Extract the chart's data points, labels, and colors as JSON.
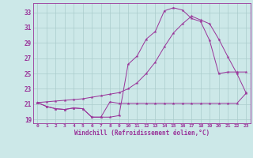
{
  "xlabel": "Windchill (Refroidissement éolien,°C)",
  "bg_color": "#cce8e8",
  "grid_color": "#aacccc",
  "line_color": "#993399",
  "xlim": [
    -0.5,
    23.5
  ],
  "ylim": [
    18.5,
    34.2
  ],
  "xticks": [
    0,
    1,
    2,
    3,
    4,
    5,
    6,
    7,
    8,
    9,
    10,
    11,
    12,
    13,
    14,
    15,
    16,
    17,
    18,
    19,
    20,
    21,
    22,
    23
  ],
  "yticks": [
    19,
    21,
    23,
    25,
    27,
    29,
    31,
    33
  ],
  "line1_x": [
    0,
    1,
    2,
    3,
    4,
    5,
    6,
    7,
    8,
    9,
    10,
    11,
    12,
    13,
    14,
    15,
    16,
    17,
    18,
    19,
    20,
    21,
    22,
    23
  ],
  "line1_y": [
    21.2,
    20.7,
    20.4,
    20.3,
    20.5,
    20.4,
    19.3,
    19.3,
    21.3,
    21.1,
    21.1,
    21.1,
    21.1,
    21.1,
    21.1,
    21.1,
    21.1,
    21.1,
    21.1,
    21.1,
    21.1,
    21.1,
    21.1,
    22.4
  ],
  "line2_x": [
    0,
    1,
    2,
    3,
    4,
    5,
    6,
    7,
    8,
    9,
    10,
    11,
    12,
    13,
    14,
    15,
    16,
    17,
    18,
    19,
    20,
    21,
    22,
    23
  ],
  "line2_y": [
    21.2,
    20.7,
    20.4,
    20.3,
    20.5,
    20.4,
    19.3,
    19.3,
    19.3,
    19.5,
    26.2,
    27.3,
    29.5,
    30.5,
    33.2,
    33.6,
    33.3,
    32.2,
    31.8,
    29.3,
    25.0,
    25.2,
    25.2,
    25.2
  ],
  "line3_x": [
    0,
    1,
    2,
    3,
    4,
    5,
    6,
    7,
    8,
    9,
    10,
    11,
    12,
    13,
    14,
    15,
    16,
    17,
    18,
    19,
    20,
    21,
    22,
    23
  ],
  "line3_y": [
    21.2,
    21.3,
    21.4,
    21.5,
    21.6,
    21.7,
    21.9,
    22.1,
    22.3,
    22.5,
    23.0,
    23.8,
    25.0,
    26.5,
    28.5,
    30.3,
    31.5,
    32.5,
    32.0,
    31.5,
    29.5,
    27.2,
    25.0,
    22.5
  ]
}
